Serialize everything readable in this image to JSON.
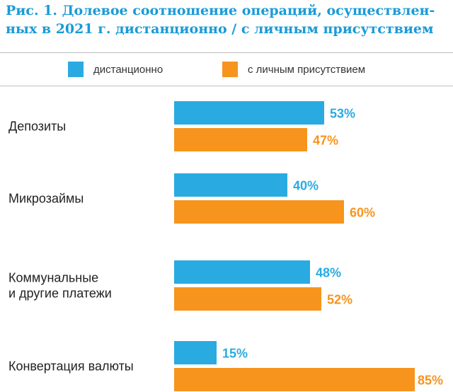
{
  "title_line1": "Рис. 1. Долевое соотношение операций, осуществлен-",
  "title_line2": "ных в 2021 г. дистанционно / с личным присутствием",
  "legend": [
    {
      "label": "дистанционно",
      "color": "#29abe2"
    },
    {
      "label": "с личным присутствием",
      "color": "#f7941d"
    }
  ],
  "chart_data": {
    "type": "bar",
    "orientation": "horizontal",
    "categories": [
      [
        "Депозиты"
      ],
      [
        "Микрозаймы"
      ],
      [
        "Коммунальные",
        "и другие платежи"
      ],
      [
        "Конвертация валюты"
      ]
    ],
    "series": [
      {
        "name": "дистанционно",
        "color": "#29abe2",
        "values": [
          53,
          40,
          48,
          15
        ],
        "value_labels": [
          "53%",
          "40%",
          "48%",
          "15%"
        ]
      },
      {
        "name": "с личным присутствием",
        "color": "#f7941d",
        "values": [
          47,
          60,
          52,
          85
        ],
        "value_labels": [
          "47%",
          "60%",
          "52%",
          "85%"
        ]
      }
    ],
    "xlim": [
      0,
      100
    ],
    "grid": false,
    "legend_position": "top"
  }
}
